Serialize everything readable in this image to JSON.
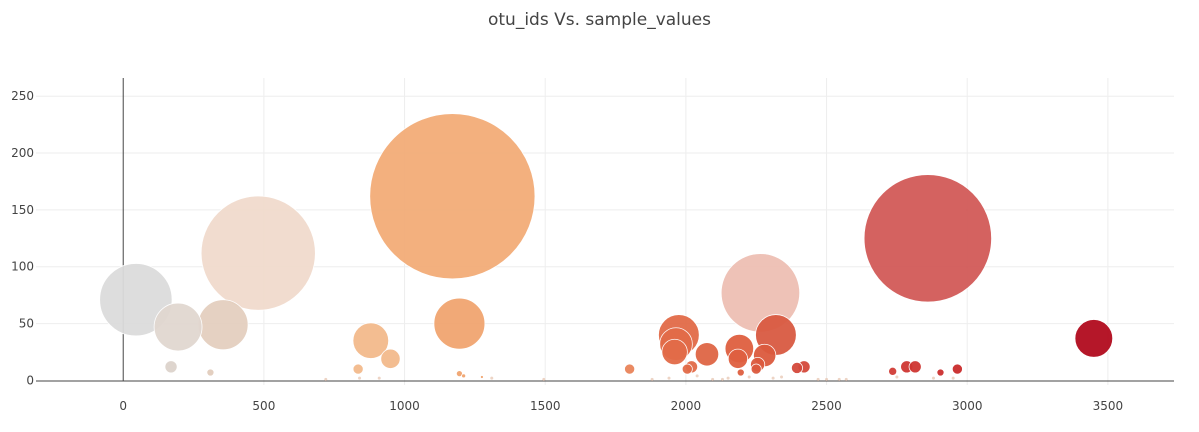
{
  "chart_data": {
    "type": "scatter",
    "title": "otu_ids Vs. sample_values",
    "xlabel": "",
    "ylabel": "",
    "xlim": [
      -310,
      3735
    ],
    "ylim": [
      -4,
      266
    ],
    "x_ticks": [
      0,
      500,
      1000,
      1500,
      2000,
      2500,
      3000,
      3500
    ],
    "y_ticks": [
      0,
      50,
      100,
      150,
      200,
      250
    ],
    "grid": true,
    "legend": "none",
    "marker_size": "sample_values",
    "colorscale_by": "otu_ids",
    "points": [
      {
        "x": 45,
        "y": 71,
        "color": "#dcdcdc"
      },
      {
        "x": 195,
        "y": 47,
        "color": "#e1d7d0"
      },
      {
        "x": 170,
        "y": 12,
        "color": "#ddd3cc"
      },
      {
        "x": 355,
        "y": 49,
        "color": "#e4cfbf"
      },
      {
        "x": 310,
        "y": 7,
        "color": "#e2cdbd"
      },
      {
        "x": 480,
        "y": 112,
        "color": "#f1dbcd"
      },
      {
        "x": 880,
        "y": 35,
        "color": "#f3ba8c"
      },
      {
        "x": 950,
        "y": 19,
        "color": "#f3ba8c"
      },
      {
        "x": 835,
        "y": 10,
        "color": "#f3ba8c"
      },
      {
        "x": 1170,
        "y": 162,
        "color": "#f3ac78"
      },
      {
        "x": 1195,
        "y": 50,
        "color": "#f1a570"
      },
      {
        "x": 1195,
        "y": 6,
        "color": "#f1a570"
      },
      {
        "x": 1210,
        "y": 4,
        "color": "#f1a570"
      },
      {
        "x": 1275,
        "y": 3,
        "color": "#f1a570"
      },
      {
        "x": 1800,
        "y": 10,
        "color": "#e9845a"
      },
      {
        "x": 1975,
        "y": 40,
        "color": "#e26b48"
      },
      {
        "x": 1965,
        "y": 32,
        "color": "#e26b48"
      },
      {
        "x": 1960,
        "y": 25,
        "color": "#e26b48"
      },
      {
        "x": 2020,
        "y": 12,
        "color": "#e26b48"
      },
      {
        "x": 2075,
        "y": 23,
        "color": "#df6645"
      },
      {
        "x": 2005,
        "y": 10,
        "color": "#e26b48"
      },
      {
        "x": 2190,
        "y": 28,
        "color": "#df5f40"
      },
      {
        "x": 2185,
        "y": 19,
        "color": "#df5f40"
      },
      {
        "x": 2255,
        "y": 14,
        "color": "#dc5a3e"
      },
      {
        "x": 2250,
        "y": 10,
        "color": "#dc5a3e"
      },
      {
        "x": 2195,
        "y": 7,
        "color": "#df5f40"
      },
      {
        "x": 2280,
        "y": 22,
        "color": "#dc5a3e"
      },
      {
        "x": 2265,
        "y": 77,
        "color": "#eebfb4"
      },
      {
        "x": 2320,
        "y": 40,
        "color": "#d95a42"
      },
      {
        "x": 2395,
        "y": 11,
        "color": "#d4493c"
      },
      {
        "x": 2420,
        "y": 12,
        "color": "#d4493c"
      },
      {
        "x": 2735,
        "y": 8,
        "color": "#d13d36"
      },
      {
        "x": 2785,
        "y": 12,
        "color": "#cf3632"
      },
      {
        "x": 2815,
        "y": 12,
        "color": "#cf3632"
      },
      {
        "x": 2860,
        "y": 125,
        "color": "#d25a58"
      },
      {
        "x": 2905,
        "y": 7,
        "color": "#cc2f2f"
      },
      {
        "x": 2965,
        "y": 10,
        "color": "#ca2c2c"
      },
      {
        "x": 3450,
        "y": 37,
        "color": "#b20b1e"
      }
    ],
    "small_points": [
      {
        "x": 720,
        "y": 1
      },
      {
        "x": 840,
        "y": 2
      },
      {
        "x": 910,
        "y": 2
      },
      {
        "x": 1310,
        "y": 2
      },
      {
        "x": 1495,
        "y": 1
      },
      {
        "x": 1880,
        "y": 1
      },
      {
        "x": 1940,
        "y": 2
      },
      {
        "x": 2040,
        "y": 4
      },
      {
        "x": 2095,
        "y": 1
      },
      {
        "x": 2130,
        "y": 1
      },
      {
        "x": 2150,
        "y": 2
      },
      {
        "x": 2225,
        "y": 3
      },
      {
        "x": 2310,
        "y": 2
      },
      {
        "x": 2340,
        "y": 3
      },
      {
        "x": 2470,
        "y": 1
      },
      {
        "x": 2500,
        "y": 1
      },
      {
        "x": 2545,
        "y": 1
      },
      {
        "x": 2570,
        "y": 1
      },
      {
        "x": 2750,
        "y": 3
      },
      {
        "x": 2880,
        "y": 2
      },
      {
        "x": 2950,
        "y": 2
      }
    ]
  }
}
